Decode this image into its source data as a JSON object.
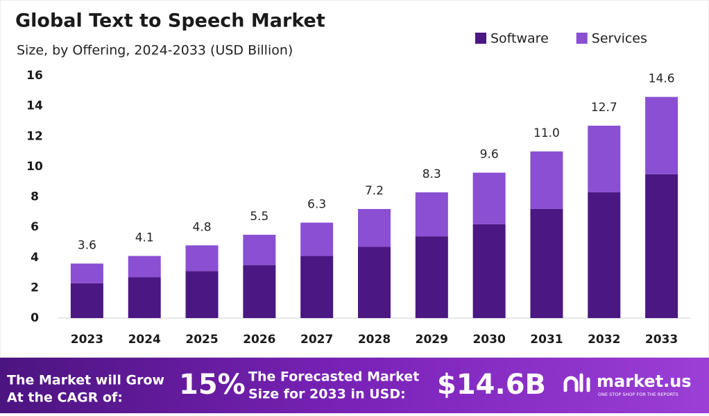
{
  "chart_data": {
    "type": "stacked_bar",
    "title": "Global Text to Speech Market",
    "subtitle": "Size, by Offering, 2024-2033 (USD Billion)",
    "categories": [
      "2023",
      "2024",
      "2025",
      "2026",
      "2027",
      "2028",
      "2029",
      "2030",
      "2031",
      "2032",
      "2033"
    ],
    "series": [
      {
        "name": "Software",
        "color": "#4b1782",
        "values": [
          2.3,
          2.7,
          3.1,
          3.5,
          4.1,
          4.7,
          5.4,
          6.2,
          7.2,
          8.3,
          9.5
        ]
      },
      {
        "name": "Services",
        "color": "#8a4fd3",
        "values": [
          1.3,
          1.4,
          1.7,
          2.0,
          2.2,
          2.5,
          2.9,
          3.4,
          3.8,
          4.4,
          5.1
        ]
      }
    ],
    "totals": [
      3.6,
      4.1,
      4.8,
      5.5,
      6.3,
      7.2,
      8.3,
      9.6,
      11.0,
      12.7,
      14.6
    ],
    "value_labels": [
      "3.6",
      "4.1",
      "4.8",
      "5.5",
      "6.3",
      "7.2",
      "8.3",
      "9.6",
      "11.0",
      "12.7",
      "14.6"
    ],
    "ylim": [
      0,
      16
    ],
    "yticks": [
      0,
      2,
      4,
      6,
      8,
      10,
      12,
      14,
      16
    ],
    "grid": false,
    "legend": "top-right"
  },
  "footer": {
    "cagr_text": [
      "The Market will Grow",
      "At the CAGR of:"
    ],
    "cagr": "15%",
    "forecast_text": [
      "The Forecasted Market",
      "Size for 2033 in USD:"
    ],
    "forecast": "$14.6B",
    "brand": "market.us",
    "tagline": "ONE STOP SHOP FOR THE REPORTS"
  }
}
